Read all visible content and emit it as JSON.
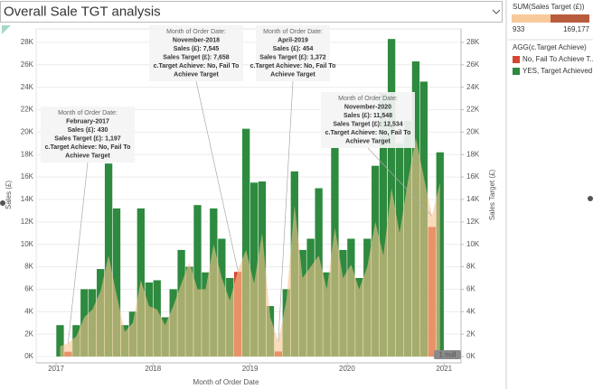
{
  "chart_data": {
    "type": "bar",
    "title": "Overall Sale TGT analysis",
    "x_label": "Month of Order Date",
    "y_label": "Sales (£)",
    "y2_label": "Sales Target (£)",
    "x": [
      2017,
      2017.083,
      2017.167,
      2017.25,
      2017.333,
      2017.417,
      2017.5,
      2017.583,
      2017.667,
      2017.75,
      2017.833,
      2017.917,
      2018,
      2018.083,
      2018.167,
      2018.25,
      2018.333,
      2018.417,
      2018.5,
      2018.583,
      2018.667,
      2018.75,
      2018.833,
      2018.917,
      2019,
      2019.083,
      2019.167,
      2019.25,
      2019.333,
      2019.417,
      2019.5,
      2019.583,
      2019.667,
      2019.75,
      2019.833,
      2019.917,
      2020,
      2020.083,
      2020.167,
      2020.25,
      2020.333,
      2020.417,
      2020.5,
      2020.583,
      2020.667,
      2020.75,
      2020.833,
      2020.917
    ],
    "series": [
      {
        "name": "No, Fail To Achieve T...",
        "color": "#d4462f",
        "values": [
          null,
          430,
          null,
          null,
          null,
          null,
          null,
          null,
          null,
          null,
          null,
          null,
          null,
          null,
          null,
          null,
          null,
          null,
          null,
          null,
          null,
          null,
          7545,
          null,
          null,
          null,
          null,
          454,
          null,
          null,
          null,
          null,
          null,
          null,
          null,
          null,
          null,
          null,
          null,
          null,
          null,
          null,
          null,
          null,
          null,
          null,
          11548,
          null
        ]
      },
      {
        "name": "YES, Target Achieved",
        "color": "#2d8a3e",
        "values": [
          2800,
          null,
          2800,
          6000,
          6000,
          7800,
          17200,
          13200,
          2800,
          4000,
          13200,
          6600,
          6800,
          3500,
          6000,
          9500,
          8000,
          13500,
          7500,
          13200,
          10500,
          7000,
          null,
          20300,
          15500,
          15600,
          4500,
          null,
          6000,
          16500,
          9500,
          10500,
          15000,
          7500,
          18600,
          9500,
          10500,
          7000,
          10500,
          17000,
          23500,
          28300,
          19000,
          21000,
          26300,
          24500,
          null,
          18200
        ]
      },
      {
        "name": "Sales Target (£)",
        "color": "#f5c48f",
        "axis": "y2",
        "type": "area",
        "values": [
          900,
          1197,
          1800,
          3500,
          4200,
          5800,
          9000,
          5500,
          2200,
          3000,
          6800,
          4500,
          4200,
          2800,
          4500,
          6500,
          8400,
          6000,
          6000,
          10000,
          7000,
          5000,
          7658,
          9500,
          6500,
          11000,
          3500,
          1372,
          5000,
          13500,
          7000,
          8000,
          9000,
          6000,
          11500,
          7000,
          8200,
          6000,
          8000,
          12000,
          9000,
          15000,
          11000,
          15500,
          19500,
          16000,
          12534,
          15500
        ]
      }
    ],
    "xlim": [
      2016.795,
      2021.175
    ],
    "xticks": [
      2017,
      2018,
      2019,
      2020,
      2021
    ],
    "ylim": [
      -560,
      29200
    ],
    "y2lim": [
      -560,
      29200
    ],
    "yticks": [
      {
        "value": 0,
        "label": "0K"
      },
      {
        "value": 2000,
        "label": "2K"
      },
      {
        "value": 4000,
        "label": "4K"
      },
      {
        "value": 6000,
        "label": "6K"
      },
      {
        "value": 8000,
        "label": "8K"
      },
      {
        "value": 10000,
        "label": "10K"
      },
      {
        "value": 12000,
        "label": "12K"
      },
      {
        "value": 14000,
        "label": "14K"
      },
      {
        "value": 16000,
        "label": "16K"
      },
      {
        "value": 18000,
        "label": "18K"
      },
      {
        "value": 20000,
        "label": "20K"
      },
      {
        "value": 22000,
        "label": "22K"
      },
      {
        "value": 24000,
        "label": "24K"
      },
      {
        "value": 26000,
        "label": "26K"
      },
      {
        "value": 28000,
        "label": "28K"
      }
    ],
    "y2ticks": [
      {
        "value": 0,
        "label": "0K"
      },
      {
        "value": 2000,
        "label": "2K"
      },
      {
        "value": 4000,
        "label": "4K"
      },
      {
        "value": 6000,
        "label": "6K"
      },
      {
        "value": 8000,
        "label": "8K"
      },
      {
        "value": 10000,
        "label": "10K"
      },
      {
        "value": 12000,
        "label": "12K"
      },
      {
        "value": 14000,
        "label": "14K"
      },
      {
        "value": 16000,
        "label": "16K"
      },
      {
        "value": 18000,
        "label": "18K"
      },
      {
        "value": 20000,
        "label": "20K"
      },
      {
        "value": 22000,
        "label": "22K"
      },
      {
        "value": 24000,
        "label": "24K"
      },
      {
        "value": 26000,
        "label": "26K"
      },
      {
        "value": 28000,
        "label": "28K"
      }
    ],
    "grid": true,
    "legend_title": "AGG(c.Target Achieve)",
    "color_legend": {
      "title": "SUM(Sales Target (£))",
      "ticks": [
        933,
        {
          "value": 169177,
          "label": "169,177"
        }
      ],
      "colors": [
        "#f8c99b",
        "#b95c3e"
      ]
    },
    "null_indicator": "1 null",
    "annotations": [
      {
        "lines": [
          "Month of Order Date:",
          "February-2017",
          "Sales (£): 430",
          "Sales Target (£): 1,197",
          "c.Target Achieve: No, Fail To",
          "Achieve Target"
        ]
      },
      {
        "lines": [
          "Month of Order Date:",
          "November-2018",
          "Sales (£): 7,545",
          "Sales Target (£): 7,658",
          "c.Target Achieve: No, Fail To",
          "Achieve Target"
        ]
      },
      {
        "lines": [
          "Month of Order Date:",
          "April-2019",
          "Sales (£): 454",
          "Sales Target (£): 1,372",
          "c.Target Achieve: No, Fail To",
          "Achieve Target"
        ]
      },
      {
        "lines": [
          "Month of Order Date:",
          "November-2020",
          "Sales (£): 11,548",
          "Sales Target (£): 12,534",
          "c.Target Achieve: No, Fail To",
          "Achieve Target"
        ]
      }
    ]
  }
}
